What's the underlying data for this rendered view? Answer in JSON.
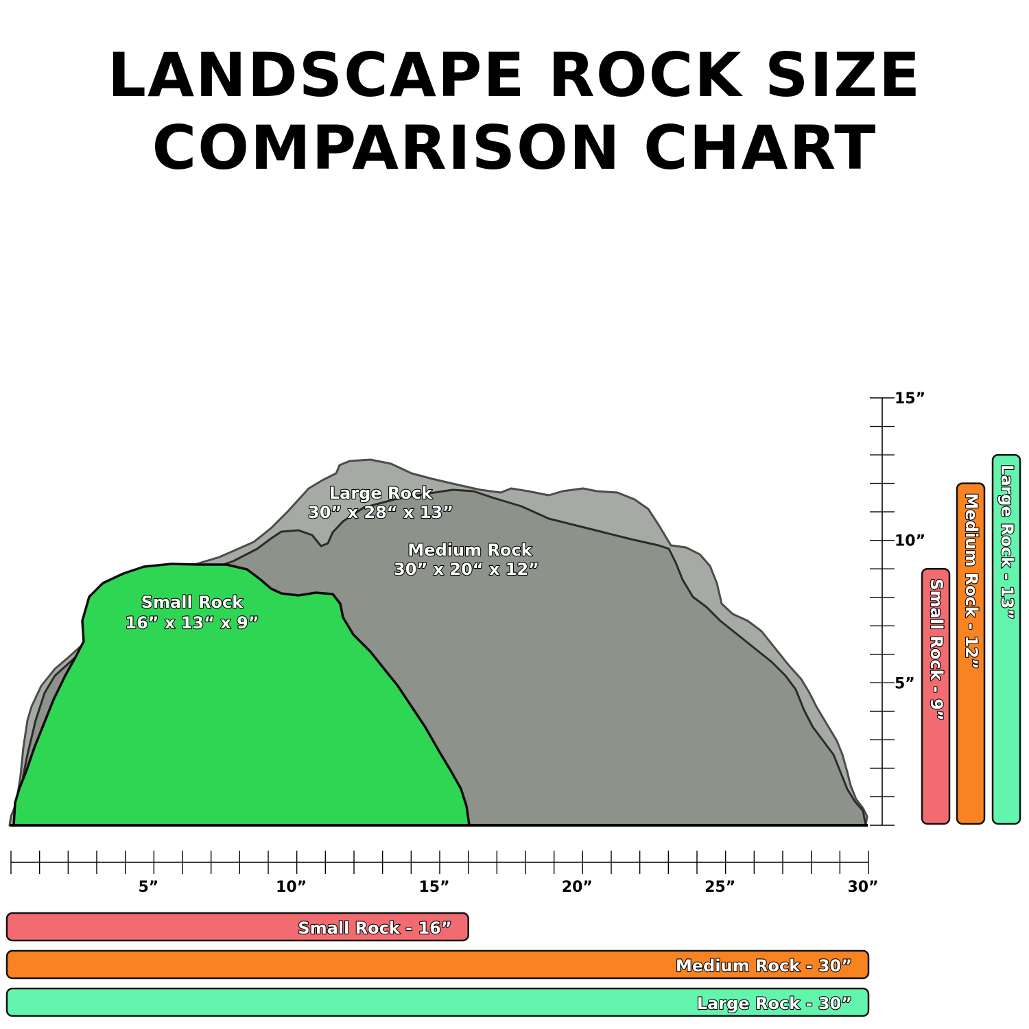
{
  "title": {
    "line1": "LANDSCAPE ROCK SIZE",
    "line2": "COMPARISON CHART"
  },
  "colors": {
    "small": "#2fd654",
    "small_bar": "#f26b70",
    "medium": "#8d928b",
    "medium_bar": "#f98221",
    "large": "#a6aaa4",
    "large_bar": "#63f5ad"
  },
  "chart_data": {
    "type": "bar",
    "unit": "inches",
    "x_axis": {
      "range": [
        0,
        30
      ],
      "minor_step": 1,
      "labeled_ticks": [
        5,
        10,
        15,
        20,
        25,
        30
      ],
      "tick_labels": [
        "5”",
        "10”",
        "15”",
        "20”",
        "25”",
        "30”"
      ]
    },
    "y_axis": {
      "range": [
        0,
        15
      ],
      "minor_step": 1,
      "labeled_ticks": [
        5,
        10,
        15
      ],
      "tick_labels": [
        "5”",
        "10”",
        "15”"
      ]
    },
    "rocks": [
      {
        "name": "Small Rock",
        "dimensions_label": "16” x 13“ x 9”",
        "length": 16,
        "height": 9,
        "width_bar_label": "Small Rock - 16”",
        "height_bar_label": "Small Rock - 9”"
      },
      {
        "name": "Medium Rock",
        "dimensions_label": "30” x 20“ x 12”",
        "length": 30,
        "height": 12,
        "width_bar_label": "Medium Rock - 30”",
        "height_bar_label": "Medium Rock - 12”"
      },
      {
        "name": "Large Rock",
        "dimensions_label": "30” x 28“ x 13”",
        "length": 30,
        "height": 13,
        "width_bar_label": "Large Rock - 30”",
        "height_bar_label": "Large Rock - 13”"
      }
    ]
  }
}
